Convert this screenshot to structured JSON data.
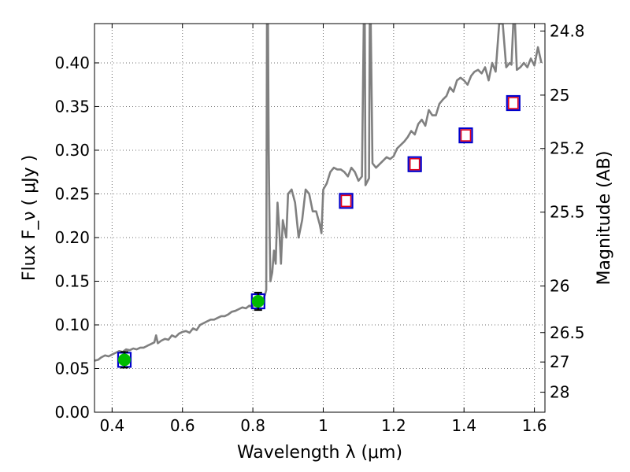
{
  "chart_data": {
    "type": "scatter",
    "xlabel": "Wavelength  λ (μm)",
    "ylabel": "Flux  F_ν  ( μJy )",
    "y2label": "Magnitude (AB)",
    "xlim": [
      0.35,
      1.63
    ],
    "ylim": [
      0.0,
      0.445
    ],
    "grid": true,
    "x_ticks": [
      {
        "value": 0.4,
        "label": "0.4"
      },
      {
        "value": 0.6,
        "label": "0.6"
      },
      {
        "value": 0.8,
        "label": "0.8"
      },
      {
        "value": 1.0,
        "label": "1"
      },
      {
        "value": 1.2,
        "label": "1.2"
      },
      {
        "value": 1.4,
        "label": "1.4"
      },
      {
        "value": 1.6,
        "label": "1.6"
      }
    ],
    "y_ticks": [
      {
        "value": 0.0,
        "label": "0.00"
      },
      {
        "value": 0.05,
        "label": "0.05"
      },
      {
        "value": 0.1,
        "label": "0.10"
      },
      {
        "value": 0.15,
        "label": "0.15"
      },
      {
        "value": 0.2,
        "label": "0.20"
      },
      {
        "value": 0.25,
        "label": "0.25"
      },
      {
        "value": 0.3,
        "label": "0.30"
      },
      {
        "value": 0.35,
        "label": "0.35"
      },
      {
        "value": 0.4,
        "label": "0.40"
      }
    ],
    "y2_ticks": [
      {
        "flux": 0.4365,
        "label": "24.8"
      },
      {
        "flux": 0.3631,
        "label": "25"
      },
      {
        "flux": 0.302,
        "label": "25.2"
      },
      {
        "flux": 0.2291,
        "label": "25.5"
      },
      {
        "flux": 0.1445,
        "label": "26"
      },
      {
        "flux": 0.0912,
        "label": "26.5"
      },
      {
        "flux": 0.0575,
        "label": "27"
      },
      {
        "flux": 0.0229,
        "label": "28"
      }
    ],
    "series": [
      {
        "kind": "model-spectrum",
        "color": "#808080",
        "x": [
          0.35,
          0.36,
          0.37,
          0.38,
          0.39,
          0.4,
          0.41,
          0.42,
          0.43,
          0.44,
          0.45,
          0.46,
          0.47,
          0.48,
          0.49,
          0.5,
          0.51,
          0.52,
          0.525,
          0.53,
          0.54,
          0.55,
          0.56,
          0.57,
          0.58,
          0.59,
          0.6,
          0.61,
          0.62,
          0.63,
          0.64,
          0.65,
          0.66,
          0.67,
          0.68,
          0.69,
          0.7,
          0.71,
          0.72,
          0.73,
          0.74,
          0.75,
          0.76,
          0.77,
          0.78,
          0.79,
          0.8,
          0.81,
          0.82,
          0.83,
          0.835,
          0.838,
          0.84,
          0.843,
          0.845,
          0.848,
          0.85,
          0.855,
          0.86,
          0.865,
          0.87,
          0.875,
          0.88,
          0.885,
          0.89,
          0.895,
          0.9,
          0.91,
          0.92,
          0.93,
          0.94,
          0.95,
          0.96,
          0.97,
          0.98,
          0.99,
          0.995,
          1.0,
          1.01,
          1.02,
          1.03,
          1.04,
          1.05,
          1.06,
          1.07,
          1.08,
          1.09,
          1.1,
          1.11,
          1.115,
          1.118,
          1.12,
          1.13,
          1.132,
          1.135,
          1.14,
          1.15,
          1.16,
          1.17,
          1.18,
          1.19,
          1.2,
          1.21,
          1.22,
          1.23,
          1.24,
          1.25,
          1.26,
          1.27,
          1.28,
          1.29,
          1.3,
          1.31,
          1.32,
          1.33,
          1.34,
          1.35,
          1.36,
          1.37,
          1.38,
          1.39,
          1.4,
          1.41,
          1.42,
          1.43,
          1.44,
          1.45,
          1.46,
          1.47,
          1.48,
          1.49,
          1.5,
          1.51,
          1.52,
          1.53,
          1.535,
          1.54,
          1.545,
          1.55,
          1.56,
          1.57,
          1.58,
          1.59,
          1.6,
          1.61,
          1.62
        ],
        "y": [
          0.059,
          0.06,
          0.063,
          0.065,
          0.064,
          0.066,
          0.068,
          0.07,
          0.069,
          0.072,
          0.071,
          0.073,
          0.072,
          0.074,
          0.074,
          0.076,
          0.078,
          0.08,
          0.088,
          0.079,
          0.082,
          0.084,
          0.083,
          0.088,
          0.086,
          0.09,
          0.092,
          0.093,
          0.091,
          0.096,
          0.094,
          0.1,
          0.102,
          0.104,
          0.106,
          0.106,
          0.108,
          0.11,
          0.11,
          0.112,
          0.115,
          0.116,
          0.118,
          0.12,
          0.119,
          0.122,
          0.121,
          0.124,
          0.127,
          0.13,
          0.135,
          0.14,
          0.445,
          0.445,
          0.3,
          0.2,
          0.15,
          0.16,
          0.185,
          0.17,
          0.24,
          0.21,
          0.17,
          0.22,
          0.21,
          0.2,
          0.25,
          0.255,
          0.24,
          0.2,
          0.22,
          0.255,
          0.25,
          0.23,
          0.23,
          0.215,
          0.205,
          0.255,
          0.262,
          0.275,
          0.28,
          0.278,
          0.278,
          0.275,
          0.27,
          0.28,
          0.275,
          0.265,
          0.27,
          0.445,
          0.445,
          0.26,
          0.268,
          0.445,
          0.445,
          0.285,
          0.28,
          0.284,
          0.288,
          0.292,
          0.29,
          0.293,
          0.302,
          0.306,
          0.31,
          0.315,
          0.322,
          0.318,
          0.33,
          0.335,
          0.328,
          0.346,
          0.34,
          0.34,
          0.353,
          0.358,
          0.362,
          0.372,
          0.367,
          0.38,
          0.383,
          0.38,
          0.375,
          0.385,
          0.39,
          0.392,
          0.388,
          0.395,
          0.38,
          0.4,
          0.39,
          0.445,
          0.445,
          0.395,
          0.4,
          0.398,
          0.445,
          0.445,
          0.392,
          0.395,
          0.4,
          0.395,
          0.405,
          0.397,
          0.418,
          0.4
        ]
      },
      {
        "kind": "blue-squares",
        "color": "#0000cc",
        "x": [
          0.435,
          0.815,
          1.065,
          1.26,
          1.405,
          1.54
        ],
        "y": [
          0.06,
          0.127,
          0.242,
          0.284,
          0.317,
          0.354
        ]
      },
      {
        "kind": "red-squares",
        "color": "#e0001b",
        "x": [
          1.065,
          1.26,
          1.405,
          1.54
        ],
        "y": [
          0.242,
          0.284,
          0.317,
          0.354
        ]
      },
      {
        "kind": "green-points",
        "color": "#00bb00",
        "x": [
          0.435,
          0.815
        ],
        "y": [
          0.06,
          0.127
        ],
        "yerr": [
          0.009,
          0.01
        ]
      }
    ]
  }
}
